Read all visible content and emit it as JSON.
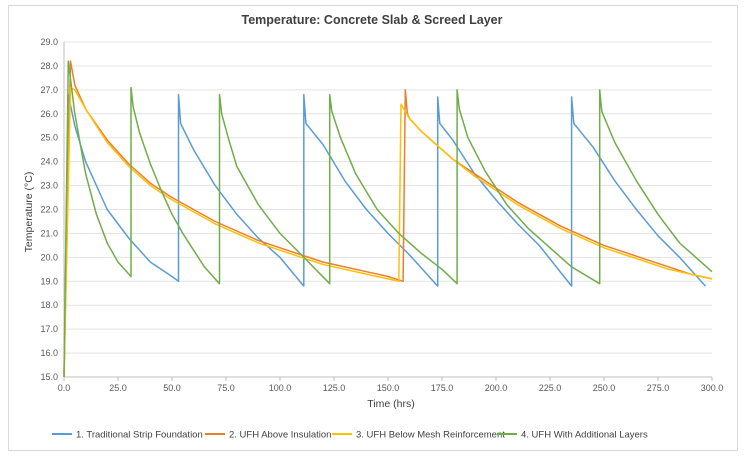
{
  "chart_data": {
    "type": "line",
    "title": "Temperature: Concrete Slab & Screed Layer",
    "xlabel": "Time (hrs)",
    "ylabel": "Temperature (°C)",
    "xlim": [
      0,
      300
    ],
    "ylim": [
      15,
      29
    ],
    "xticks": [
      "0.0",
      "25.0",
      "50.0",
      "75.0",
      "100.0",
      "125.0",
      "150.0",
      "175.0",
      "200.0",
      "225.0",
      "250.0",
      "275.0",
      "300.0"
    ],
    "yticks": [
      "15.0",
      "16.0",
      "17.0",
      "18.0",
      "19.0",
      "20.0",
      "21.0",
      "22.0",
      "23.0",
      "24.0",
      "25.0",
      "26.0",
      "27.0",
      "28.0",
      "29.0"
    ],
    "grid": "horizontal",
    "legend_position": "bottom",
    "series": [
      {
        "name": "1. Traditional Strip Foundation",
        "color": "#5b9bd5",
        "x": [
          0,
          2,
          5,
          10,
          20,
          30,
          40,
          50,
          53,
          53,
          54,
          60,
          70,
          80,
          90,
          100,
          111,
          111,
          112,
          120,
          130,
          140,
          150,
          160,
          173,
          173,
          174,
          180,
          190,
          200,
          210,
          220,
          235,
          235,
          236,
          245,
          255,
          265,
          275,
          285,
          297
        ],
        "y": [
          15.0,
          26.8,
          25.5,
          24.0,
          22.0,
          20.8,
          19.8,
          19.2,
          19.0,
          26.8,
          25.6,
          24.5,
          23.0,
          21.8,
          20.8,
          20.0,
          18.8,
          26.8,
          25.6,
          24.7,
          23.2,
          22.0,
          21.0,
          20.1,
          18.8,
          26.7,
          25.6,
          24.9,
          23.5,
          22.4,
          21.4,
          20.5,
          18.8,
          26.7,
          25.6,
          24.6,
          23.2,
          22.0,
          20.9,
          20.0,
          18.8
        ]
      },
      {
        "name": "2. UFH Above Insulation",
        "color": "#ed7d31",
        "x": [
          0,
          3,
          5,
          10,
          20,
          30,
          40,
          50,
          60,
          70,
          80,
          90,
          100,
          110,
          120,
          130,
          140,
          150,
          157,
          158,
          159,
          160,
          165,
          170,
          175,
          180,
          190,
          200,
          210,
          220,
          230,
          240,
          250,
          260,
          270,
          280,
          290,
          300
        ],
        "y": [
          15.0,
          28.2,
          27.2,
          26.2,
          24.9,
          23.9,
          23.1,
          22.5,
          22.0,
          21.5,
          21.1,
          20.7,
          20.4,
          20.1,
          19.8,
          19.6,
          19.4,
          19.2,
          19.0,
          27.0,
          26.0,
          25.8,
          25.3,
          24.9,
          24.5,
          24.1,
          23.5,
          22.9,
          22.3,
          21.8,
          21.3,
          20.9,
          20.5,
          20.2,
          19.9,
          19.6,
          19.3,
          19.1
        ]
      },
      {
        "name": "3. UFH Below Mesh Reinforcement",
        "color": "#ffc000",
        "x": [
          0,
          3,
          5,
          10,
          20,
          30,
          40,
          50,
          60,
          70,
          80,
          90,
          100,
          110,
          120,
          130,
          140,
          150,
          155,
          156,
          158,
          160,
          165,
          170,
          175,
          180,
          190,
          200,
          210,
          220,
          230,
          240,
          250,
          260,
          270,
          280,
          290,
          300
        ],
        "y": [
          15.0,
          27.1,
          27.0,
          26.2,
          24.8,
          23.8,
          23.0,
          22.4,
          21.9,
          21.4,
          21.0,
          20.6,
          20.3,
          20.0,
          19.7,
          19.5,
          19.3,
          19.1,
          19.0,
          26.4,
          26.1,
          25.8,
          25.3,
          24.9,
          24.5,
          24.1,
          23.4,
          22.8,
          22.2,
          21.7,
          21.2,
          20.8,
          20.4,
          20.1,
          19.8,
          19.5,
          19.3,
          19.1
        ]
      },
      {
        "name": "4. UFH With Additional Layers",
        "color": "#70ad47",
        "x": [
          0,
          2,
          5,
          10,
          15,
          20,
          25,
          31,
          31,
          32,
          35,
          40,
          45,
          50,
          55,
          60,
          65,
          72,
          72,
          73,
          76,
          80,
          90,
          100,
          110,
          123,
          123,
          124,
          128,
          135,
          145,
          155,
          165,
          175,
          182,
          182,
          183,
          187,
          195,
          205,
          215,
          225,
          235,
          248,
          248,
          249,
          255,
          265,
          275,
          285,
          300
        ],
        "y": [
          15.0,
          28.2,
          26.0,
          23.5,
          21.8,
          20.6,
          19.8,
          19.2,
          27.1,
          26.3,
          25.2,
          23.9,
          22.8,
          21.8,
          21.0,
          20.3,
          19.6,
          18.9,
          26.8,
          26.0,
          25.0,
          23.8,
          22.2,
          21.0,
          20.1,
          18.9,
          26.8,
          26.1,
          25.0,
          23.5,
          22.0,
          21.0,
          20.2,
          19.5,
          18.9,
          27.0,
          26.2,
          25.0,
          23.6,
          22.2,
          21.2,
          20.4,
          19.6,
          18.9,
          27.0,
          26.1,
          24.8,
          23.2,
          21.8,
          20.6,
          19.4
        ]
      }
    ]
  }
}
